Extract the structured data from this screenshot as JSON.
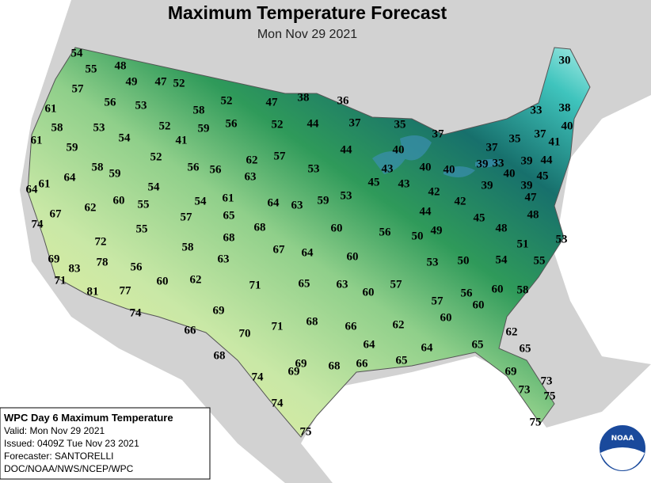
{
  "header": {
    "title": "Maximum Temperature Forecast",
    "subtitle": "Mon Nov 29 2021"
  },
  "temperatures": [
    54,
    55,
    48,
    49,
    47,
    52,
    57,
    56,
    53,
    58,
    52,
    47,
    38,
    36,
    61,
    58,
    53,
    52,
    59,
    56,
    52,
    44,
    37,
    35,
    37,
    30,
    33,
    38,
    40,
    37,
    35,
    41,
    61,
    54,
    41,
    59,
    44,
    40,
    37,
    57,
    62,
    52,
    58,
    59,
    64,
    56,
    56,
    63,
    53,
    43,
    40,
    40,
    39,
    33,
    39,
    44,
    40,
    45,
    45,
    43,
    42,
    39,
    61,
    64,
    54,
    54,
    61,
    64,
    63,
    59,
    53,
    39,
    47,
    42,
    44,
    45,
    48,
    67,
    62,
    60,
    55,
    57,
    65,
    68,
    60,
    56,
    50,
    49,
    48,
    74,
    55,
    68,
    58,
    72,
    63,
    67,
    64,
    60,
    53,
    50,
    54,
    51,
    53,
    55,
    69,
    83,
    78,
    56,
    71,
    60,
    62,
    71,
    65,
    63,
    60,
    57,
    57,
    56,
    60,
    60,
    58,
    81,
    77,
    74,
    69,
    71,
    68,
    66,
    62,
    60,
    62,
    66,
    70,
    64,
    64,
    65,
    65,
    68,
    69,
    69,
    68,
    66,
    65,
    74,
    69,
    73,
    73,
    75,
    74,
    75,
    75
  ],
  "info_box": {
    "lines": [
      "WPC Day 6 Maximum Temperature",
      "Valid: Mon Nov 29 2021",
      "Issued: 0409Z Tue Nov 23 2021",
      "Forecaster: SANTORELLI",
      "DOC/NOAA/NWS/NCEP/WPC"
    ]
  },
  "logo": {
    "text": "NOAA"
  }
}
